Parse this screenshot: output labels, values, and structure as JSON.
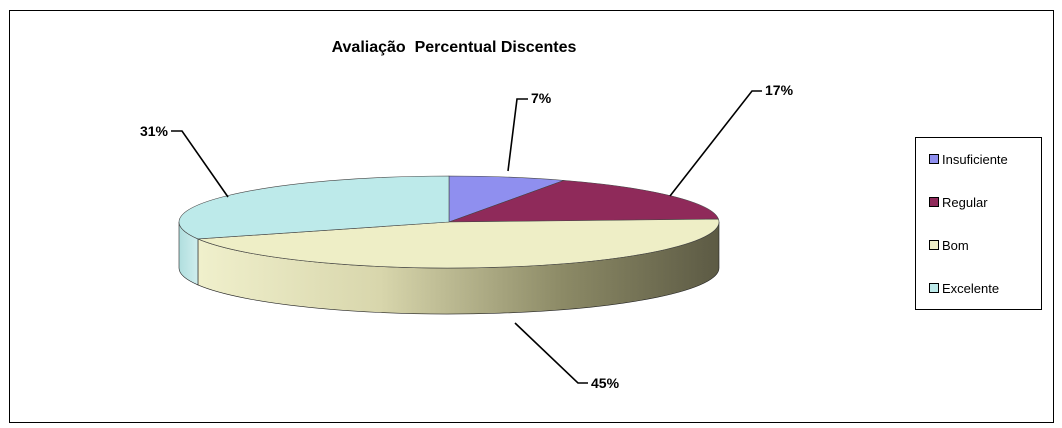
{
  "chart_data": {
    "type": "pie",
    "title": "Avaliação  Percentual Discentes",
    "categories": [
      "Insuficiente",
      "Regular",
      "Bom",
      "Excelente"
    ],
    "values": [
      7,
      17,
      45,
      31
    ],
    "labels": [
      "7%",
      "17%",
      "45%",
      "31%"
    ],
    "colors": [
      "#8f8fef",
      "#8f2a5a",
      "#eeeec6",
      "#bdeaea"
    ],
    "legend_position": "right",
    "three_d": true
  }
}
